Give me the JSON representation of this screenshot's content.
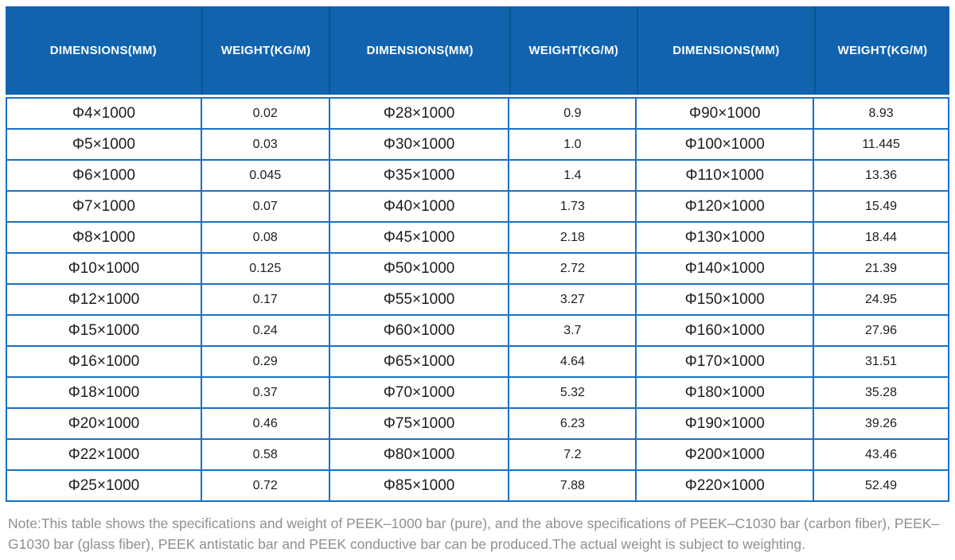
{
  "colors": {
    "header_bg": "#1163ae",
    "header_divider": "#0c5290",
    "border": "#1a71c5",
    "cell_text": "#1d1d1f",
    "note_text": "#8e9093"
  },
  "table": {
    "columns": [
      "DIMENSIONS(MM)",
      "WEIGHT(KG/M)",
      "DIMENSIONS(MM)",
      "WEIGHT(KG/M)",
      "DIMENSIONS(MM)",
      "WEIGHT(KG/M)"
    ],
    "rows": [
      [
        "Φ4×1000",
        "0.02",
        "Φ28×1000",
        "0.9",
        "Φ90×1000",
        "8.93"
      ],
      [
        "Φ5×1000",
        "0.03",
        "Φ30×1000",
        "1.0",
        "Φ100×1000",
        "11.445"
      ],
      [
        "Φ6×1000",
        "0.045",
        "Φ35×1000",
        "1.4",
        "Φ110×1000",
        "13.36"
      ],
      [
        "Φ7×1000",
        "0.07",
        "Φ40×1000",
        "1.73",
        "Φ120×1000",
        "15.49"
      ],
      [
        "Φ8×1000",
        "0.08",
        "Φ45×1000",
        "2.18",
        "Φ130×1000",
        "18.44"
      ],
      [
        "Φ10×1000",
        "0.125",
        "Φ50×1000",
        "2.72",
        "Φ140×1000",
        "21.39"
      ],
      [
        "Φ12×1000",
        "0.17",
        "Φ55×1000",
        "3.27",
        "Φ150×1000",
        "24.95"
      ],
      [
        "Φ15×1000",
        "0.24",
        "Φ60×1000",
        "3.7",
        "Φ160×1000",
        "27.96"
      ],
      [
        "Φ16×1000",
        "0.29",
        "Φ65×1000",
        "4.64",
        "Φ170×1000",
        "31.51"
      ],
      [
        "Φ18×1000",
        "0.37",
        "Φ70×1000",
        "5.32",
        "Φ180×1000",
        "35.28"
      ],
      [
        "Φ20×1000",
        "0.46",
        "Φ75×1000",
        "6.23",
        "Φ190×1000",
        "39.26"
      ],
      [
        "Φ22×1000",
        "0.58",
        "Φ80×1000",
        "7.2",
        "Φ200×1000",
        "43.46"
      ],
      [
        "Φ25×1000",
        "0.72",
        "Φ85×1000",
        "7.88",
        "Φ220×1000",
        "52.49"
      ]
    ]
  },
  "note": {
    "text": "Note:This table shows the specifications and weight of PEEK–1000 bar (pure), and the above specifications of PEEK–C1030 bar (carbon fiber), PEEK–G1030 bar (glass fiber), PEEK antistatic bar and PEEK conductive bar can be produced.The actual weight is subject to weighting."
  }
}
